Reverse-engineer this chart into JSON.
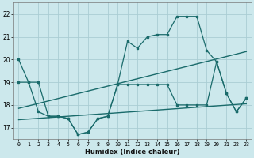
{
  "xlabel": "Humidex (Indice chaleur)",
  "bg_color": "#cce8ec",
  "grid_color": "#aacdd3",
  "line_color": "#1a6b6b",
  "xlim": [
    -0.5,
    23.5
  ],
  "ylim": [
    16.5,
    22.5
  ],
  "yticks": [
    17,
    18,
    19,
    20,
    21,
    22
  ],
  "xticks": [
    0,
    1,
    2,
    3,
    4,
    5,
    6,
    7,
    8,
    9,
    10,
    11,
    12,
    13,
    14,
    15,
    16,
    17,
    18,
    19,
    20,
    21,
    22,
    23
  ],
  "series1_x": [
    0,
    1,
    2,
    3,
    4,
    5,
    6,
    7,
    8,
    9,
    10,
    11,
    12,
    13,
    14,
    15,
    16,
    17,
    18,
    19,
    20,
    21,
    22,
    23
  ],
  "series1_y": [
    20.0,
    19.0,
    19.0,
    17.5,
    17.5,
    17.4,
    16.7,
    16.8,
    17.4,
    17.5,
    18.9,
    20.8,
    20.5,
    21.0,
    21.1,
    21.1,
    21.9,
    21.9,
    21.9,
    20.4,
    19.9,
    18.5,
    17.7,
    18.3
  ],
  "series2_x": [
    0,
    1,
    2,
    3,
    4,
    5,
    6,
    7,
    8,
    9,
    10,
    11,
    12,
    13,
    14,
    15,
    16,
    17,
    18,
    19,
    20,
    21,
    22,
    23
  ],
  "series2_y": [
    19.0,
    19.0,
    17.7,
    17.5,
    17.5,
    17.4,
    16.7,
    16.8,
    17.4,
    17.5,
    18.9,
    18.9,
    18.9,
    18.9,
    18.9,
    18.9,
    18.0,
    18.0,
    18.0,
    18.0,
    19.9,
    18.5,
    17.7,
    18.3
  ],
  "trend1_x": [
    0,
    23
  ],
  "trend1_y": [
    17.85,
    20.35
  ],
  "trend2_x": [
    0,
    23
  ],
  "trend2_y": [
    17.35,
    18.05
  ]
}
